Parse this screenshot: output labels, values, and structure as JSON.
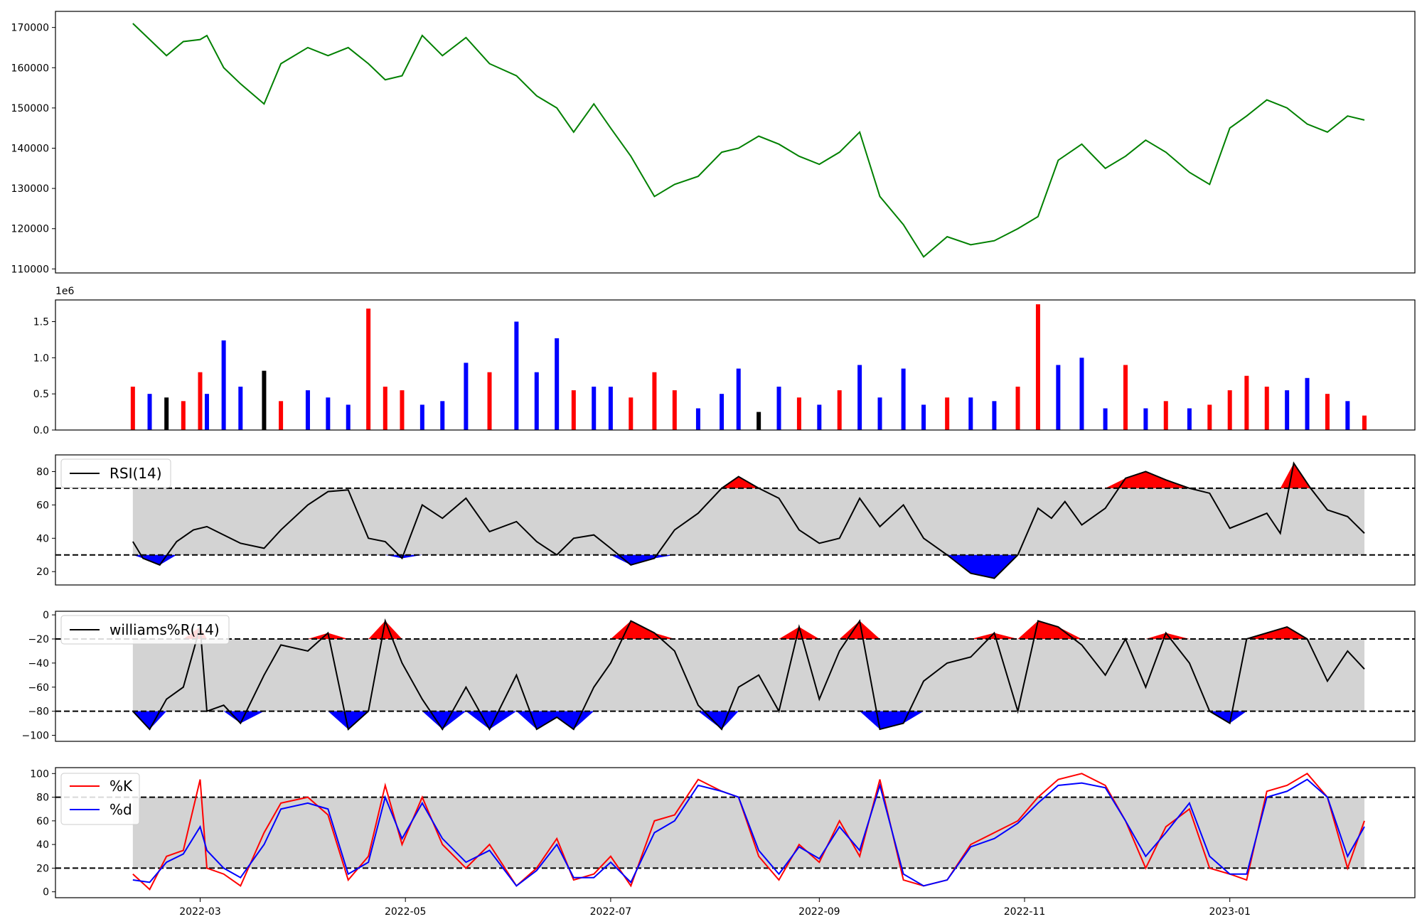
{
  "x_axis": {
    "tick_labels": [
      "2022-03",
      "2022-05",
      "2022-07",
      "2022-09",
      "2022-11",
      "2023-01"
    ],
    "tick_dates": [
      "2022-03-01",
      "2022-05-01",
      "2022-07-01",
      "2022-09-01",
      "2022-11-01",
      "2023-01-01"
    ],
    "range": [
      "2022-01-17",
      "2023-02-25"
    ]
  },
  "chart_data": [
    {
      "id": "price",
      "type": "line",
      "ylim": [
        109000,
        174000
      ],
      "yticks": [
        110000,
        120000,
        130000,
        140000,
        150000,
        160000,
        170000
      ],
      "ytick_labels": [
        "110000",
        "120000",
        "130000",
        "140000",
        "150000",
        "160000",
        "170000"
      ],
      "color": "#008000",
      "x": [
        "2022-02-09",
        "2022-02-14",
        "2022-02-19",
        "2022-02-24",
        "2022-03-01",
        "2022-03-03",
        "2022-03-08",
        "2022-03-13",
        "2022-03-20",
        "2022-03-25",
        "2022-04-02",
        "2022-04-08",
        "2022-04-14",
        "2022-04-20",
        "2022-04-25",
        "2022-04-30",
        "2022-05-06",
        "2022-05-12",
        "2022-05-19",
        "2022-05-26",
        "2022-06-03",
        "2022-06-09",
        "2022-06-15",
        "2022-06-20",
        "2022-06-26",
        "2022-07-01",
        "2022-07-07",
        "2022-07-14",
        "2022-07-20",
        "2022-07-27",
        "2022-08-03",
        "2022-08-08",
        "2022-08-14",
        "2022-08-20",
        "2022-08-26",
        "2022-09-01",
        "2022-09-07",
        "2022-09-13",
        "2022-09-19",
        "2022-09-26",
        "2022-10-02",
        "2022-10-09",
        "2022-10-16",
        "2022-10-23",
        "2022-10-30",
        "2022-11-05",
        "2022-11-11",
        "2022-11-18",
        "2022-11-25",
        "2022-12-01",
        "2022-12-07",
        "2022-12-13",
        "2022-12-20",
        "2022-12-26",
        "2023-01-01",
        "2023-01-06",
        "2023-01-12",
        "2023-01-18",
        "2023-01-24",
        "2023-01-30",
        "2023-02-05",
        "2023-02-10"
      ],
      "y": [
        171000,
        167000,
        163000,
        166500,
        167000,
        168000,
        160000,
        156000,
        151000,
        161000,
        165000,
        163000,
        165000,
        161000,
        157000,
        158000,
        168000,
        163000,
        167500,
        161000,
        158000,
        153000,
        150000,
        144000,
        151000,
        145000,
        138000,
        128000,
        131000,
        133000,
        139000,
        140000,
        143000,
        141000,
        138000,
        136000,
        139000,
        144000,
        128000,
        121000,
        113000,
        118000,
        116000,
        117000,
        120000,
        123000,
        137000,
        141000,
        135000,
        138000,
        142000,
        139000,
        134000,
        131000,
        145000,
        148000,
        152000,
        150000,
        146000,
        144000,
        148000,
        147000
      ]
    },
    {
      "id": "volume",
      "type": "bar",
      "multiplier_label": "1e6",
      "ylim": [
        0,
        1.8
      ],
      "yticks": [
        0,
        0.5,
        1.0,
        1.5
      ],
      "ytick_labels": [
        "0.0",
        "0.5",
        "1.0",
        "1.5"
      ],
      "bar_colors": {
        "up": "#ff0000",
        "down": "#0000ff",
        "flat": "#000000"
      },
      "x": [
        "2022-02-09",
        "2022-02-14",
        "2022-02-19",
        "2022-02-24",
        "2022-03-01",
        "2022-03-03",
        "2022-03-08",
        "2022-03-13",
        "2022-03-20",
        "2022-03-25",
        "2022-04-02",
        "2022-04-08",
        "2022-04-14",
        "2022-04-20",
        "2022-04-25",
        "2022-04-30",
        "2022-05-06",
        "2022-05-12",
        "2022-05-19",
        "2022-05-26",
        "2022-06-03",
        "2022-06-09",
        "2022-06-15",
        "2022-06-20",
        "2022-06-26",
        "2022-07-01",
        "2022-07-07",
        "2022-07-14",
        "2022-07-20",
        "2022-07-27",
        "2022-08-03",
        "2022-08-08",
        "2022-08-14",
        "2022-08-20",
        "2022-08-26",
        "2022-09-01",
        "2022-09-07",
        "2022-09-13",
        "2022-09-19",
        "2022-09-26",
        "2022-10-02",
        "2022-10-09",
        "2022-10-16",
        "2022-10-23",
        "2022-10-30",
        "2022-11-05",
        "2022-11-11",
        "2022-11-18",
        "2022-11-25",
        "2022-12-01",
        "2022-12-07",
        "2022-12-13",
        "2022-12-20",
        "2022-12-26",
        "2023-01-01",
        "2023-01-06",
        "2023-01-12",
        "2023-01-18",
        "2023-01-24",
        "2023-01-30",
        "2023-02-05",
        "2023-02-10"
      ],
      "values": [
        0.6,
        0.5,
        0.45,
        0.4,
        0.8,
        0.5,
        1.24,
        0.6,
        0.82,
        0.4,
        0.55,
        0.45,
        0.35,
        1.68,
        0.6,
        0.55,
        0.35,
        0.4,
        0.93,
        0.8,
        1.5,
        0.8,
        1.27,
        0.55,
        0.6,
        0.6,
        0.45,
        0.8,
        0.55,
        0.3,
        0.5,
        0.85,
        0.25,
        0.6,
        0.45,
        0.35,
        0.55,
        0.9,
        0.45,
        0.85,
        0.35,
        0.45,
        0.45,
        0.4,
        0.6,
        1.74,
        0.9,
        1.0,
        0.3,
        0.9,
        0.3,
        0.4,
        0.3,
        0.35,
        0.55,
        0.75,
        0.6,
        0.55,
        0.72,
        0.5,
        0.4,
        0.2
      ],
      "direction": [
        "up",
        "down",
        "flat",
        "up",
        "up",
        "down",
        "down",
        "down",
        "flat",
        "up",
        "down",
        "down",
        "down",
        "up",
        "up",
        "up",
        "down",
        "down",
        "down",
        "up",
        "down",
        "down",
        "down",
        "up",
        "down",
        "down",
        "up",
        "up",
        "up",
        "down",
        "down",
        "down",
        "flat",
        "down",
        "up",
        "down",
        "up",
        "down",
        "down",
        "down",
        "down",
        "up",
        "down",
        "down",
        "up",
        "up",
        "down",
        "down",
        "down",
        "up",
        "down",
        "up",
        "down",
        "up",
        "up",
        "up",
        "up",
        "down",
        "down",
        "up",
        "down",
        "up"
      ]
    },
    {
      "id": "rsi",
      "type": "line",
      "legend": "RSI(14)",
      "ylim": [
        12,
        90
      ],
      "yticks": [
        20,
        40,
        60,
        80
      ],
      "ytick_labels": [
        "20",
        "40",
        "60",
        "80"
      ],
      "band": [
        30,
        70
      ],
      "upper_fill": "#ff0000",
      "lower_fill": "#0000ff",
      "band_fill": "#d3d3d3",
      "x": [
        "2022-02-09",
        "2022-02-12",
        "2022-02-17",
        "2022-02-22",
        "2022-02-27",
        "2022-03-03",
        "2022-03-08",
        "2022-03-13",
        "2022-03-20",
        "2022-03-25",
        "2022-04-02",
        "2022-04-08",
        "2022-04-14",
        "2022-04-20",
        "2022-04-25",
        "2022-04-30",
        "2022-05-06",
        "2022-05-12",
        "2022-05-19",
        "2022-05-26",
        "2022-06-03",
        "2022-06-09",
        "2022-06-15",
        "2022-06-20",
        "2022-06-26",
        "2022-07-01",
        "2022-07-07",
        "2022-07-14",
        "2022-07-20",
        "2022-07-27",
        "2022-08-03",
        "2022-08-08",
        "2022-08-14",
        "2022-08-20",
        "2022-08-26",
        "2022-09-01",
        "2022-09-07",
        "2022-09-13",
        "2022-09-19",
        "2022-09-26",
        "2022-10-02",
        "2022-10-09",
        "2022-10-16",
        "2022-10-23",
        "2022-10-30",
        "2022-11-05",
        "2022-11-09",
        "2022-11-13",
        "2022-11-18",
        "2022-11-25",
        "2022-12-01",
        "2022-12-07",
        "2022-12-13",
        "2022-12-20",
        "2022-12-26",
        "2023-01-01",
        "2023-01-06",
        "2023-01-12",
        "2023-01-16",
        "2023-01-20",
        "2023-01-25",
        "2023-01-30",
        "2023-02-05",
        "2023-02-10"
      ],
      "y": [
        38,
        28,
        24,
        38,
        45,
        47,
        42,
        37,
        34,
        45,
        60,
        68,
        69,
        40,
        38,
        28,
        60,
        52,
        64,
        44,
        50,
        38,
        30,
        40,
        42,
        34,
        24,
        28,
        45,
        55,
        70,
        77,
        70,
        64,
        45,
        37,
        40,
        64,
        47,
        60,
        40,
        30,
        19,
        16,
        30,
        58,
        52,
        62,
        48,
        58,
        76,
        80,
        75,
        70,
        67,
        46,
        50,
        55,
        43,
        85,
        70,
        57,
        53,
        43
      ]
    },
    {
      "id": "williams",
      "type": "line",
      "legend": "williams%R(14)",
      "ylim": [
        -105,
        3
      ],
      "yticks": [
        -100,
        -80,
        -60,
        -40,
        -20,
        0
      ],
      "ytick_labels": [
        "−100",
        "−80",
        "−60",
        "−40",
        "−20",
        "0"
      ],
      "band": [
        -80,
        -20
      ],
      "upper_fill": "#ff0000",
      "lower_fill": "#0000ff",
      "band_fill": "#d3d3d3",
      "x": [
        "2022-02-09",
        "2022-02-14",
        "2022-02-19",
        "2022-02-24",
        "2022-03-01",
        "2022-03-03",
        "2022-03-08",
        "2022-03-13",
        "2022-03-20",
        "2022-03-25",
        "2022-04-02",
        "2022-04-08",
        "2022-04-14",
        "2022-04-20",
        "2022-04-25",
        "2022-04-30",
        "2022-05-06",
        "2022-05-12",
        "2022-05-19",
        "2022-05-26",
        "2022-06-03",
        "2022-06-09",
        "2022-06-15",
        "2022-06-20",
        "2022-06-26",
        "2022-07-01",
        "2022-07-07",
        "2022-07-14",
        "2022-07-20",
        "2022-07-27",
        "2022-08-03",
        "2022-08-08",
        "2022-08-14",
        "2022-08-20",
        "2022-08-26",
        "2022-09-01",
        "2022-09-07",
        "2022-09-13",
        "2022-09-19",
        "2022-09-26",
        "2022-10-02",
        "2022-10-09",
        "2022-10-16",
        "2022-10-23",
        "2022-10-30",
        "2022-11-05",
        "2022-11-11",
        "2022-11-18",
        "2022-11-25",
        "2022-12-01",
        "2022-12-07",
        "2022-12-13",
        "2022-12-20",
        "2022-12-26",
        "2023-01-01",
        "2023-01-06",
        "2023-01-12",
        "2023-01-18",
        "2023-01-24",
        "2023-01-30",
        "2023-02-05",
        "2023-02-10"
      ],
      "y": [
        -80,
        -95,
        -70,
        -60,
        -10,
        -80,
        -75,
        -90,
        -50,
        -25,
        -30,
        -15,
        -95,
        -80,
        -5,
        -40,
        -70,
        -95,
        -60,
        -95,
        -50,
        -95,
        -85,
        -95,
        -60,
        -40,
        -5,
        -15,
        -30,
        -75,
        -95,
        -60,
        -50,
        -80,
        -10,
        -70,
        -30,
        -5,
        -95,
        -90,
        -55,
        -40,
        -35,
        -15,
        -80,
        -5,
        -10,
        -25,
        -50,
        -20,
        -60,
        -15,
        -40,
        -80,
        -90,
        -20,
        -15,
        -10,
        -20,
        -55,
        -30,
        -45
      ]
    },
    {
      "id": "stochastic",
      "type": "line",
      "ylim": [
        -5,
        105
      ],
      "yticks": [
        0,
        20,
        40,
        60,
        80,
        100
      ],
      "ytick_labels": [
        "0",
        "20",
        "40",
        "60",
        "80",
        "100"
      ],
      "band": [
        20,
        80
      ],
      "band_fill": "#d3d3d3",
      "x": [
        "2022-02-09",
        "2022-02-14",
        "2022-02-19",
        "2022-02-24",
        "2022-03-01",
        "2022-03-03",
        "2022-03-08",
        "2022-03-13",
        "2022-03-20",
        "2022-03-25",
        "2022-04-02",
        "2022-04-08",
        "2022-04-14",
        "2022-04-20",
        "2022-04-25",
        "2022-04-30",
        "2022-05-06",
        "2022-05-12",
        "2022-05-19",
        "2022-05-26",
        "2022-06-03",
        "2022-06-09",
        "2022-06-15",
        "2022-06-20",
        "2022-06-26",
        "2022-07-01",
        "2022-07-07",
        "2022-07-14",
        "2022-07-20",
        "2022-07-27",
        "2022-08-03",
        "2022-08-08",
        "2022-08-14",
        "2022-08-20",
        "2022-08-26",
        "2022-09-01",
        "2022-09-07",
        "2022-09-13",
        "2022-09-19",
        "2022-09-26",
        "2022-10-02",
        "2022-10-09",
        "2022-10-16",
        "2022-10-23",
        "2022-10-30",
        "2022-11-05",
        "2022-11-11",
        "2022-11-18",
        "2022-11-25",
        "2022-12-01",
        "2022-12-07",
        "2022-12-13",
        "2022-12-20",
        "2022-12-26",
        "2023-01-01",
        "2023-01-06",
        "2023-01-12",
        "2023-01-18",
        "2023-01-24",
        "2023-01-30",
        "2023-02-05",
        "2023-02-10"
      ],
      "series": [
        {
          "name": "%K",
          "color": "#ff0000",
          "values": [
            15,
            2,
            30,
            35,
            95,
            20,
            15,
            5,
            50,
            75,
            80,
            65,
            10,
            30,
            90,
            40,
            80,
            40,
            20,
            40,
            5,
            20,
            45,
            10,
            15,
            30,
            5,
            60,
            65,
            95,
            85,
            80,
            30,
            10,
            40,
            25,
            60,
            30,
            95,
            10,
            5,
            10,
            40,
            50,
            60,
            80,
            95,
            100,
            90,
            60,
            20,
            55,
            70,
            20,
            15,
            10,
            85,
            90,
            100,
            80,
            20,
            60
          ]
        },
        {
          "name": "%d",
          "color": "#0000ff",
          "values": [
            10,
            8,
            25,
            32,
            55,
            35,
            20,
            12,
            40,
            70,
            75,
            70,
            15,
            25,
            80,
            45,
            75,
            45,
            25,
            35,
            5,
            18,
            40,
            12,
            12,
            25,
            8,
            50,
            60,
            90,
            85,
            80,
            35,
            15,
            38,
            28,
            55,
            35,
            90,
            15,
            5,
            10,
            38,
            45,
            58,
            75,
            90,
            92,
            88,
            60,
            30,
            50,
            75,
            30,
            15,
            15,
            80,
            85,
            95,
            80,
            30,
            55
          ]
        }
      ]
    }
  ]
}
